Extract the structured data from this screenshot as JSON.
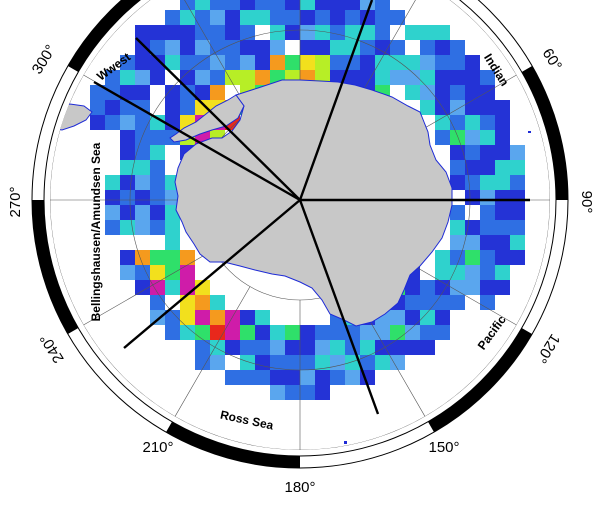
{
  "map": {
    "degree_labels": {
      "d300": "300°",
      "d60": "60°",
      "d270": "270°",
      "d90": "90°",
      "d240": "240°",
      "d120": "120°",
      "d210": "210°",
      "d150": "150°",
      "d180": "180°"
    },
    "regions": {
      "wwest": "Wwest",
      "indian": "Indian",
      "bellingshausen": "Bellingshausen/Amundsen Sea",
      "pacific": "Pacific",
      "ross": "Ross Sea"
    },
    "colors": {
      "land": "#c8c8c8",
      "coast": "#1e2bd6",
      "background": "#ffffff",
      "dark_blue": "#2433d6",
      "blue": "#2f6fe3",
      "light_blue": "#5aa6ee",
      "cyan": "#2fd2cd",
      "green": "#2fe06a",
      "yellow_green": "#b7ee26",
      "yellow": "#f2e01d",
      "orange": "#f59a1e",
      "red": "#e8281c",
      "magenta": "#cf1ca9"
    }
  }
}
